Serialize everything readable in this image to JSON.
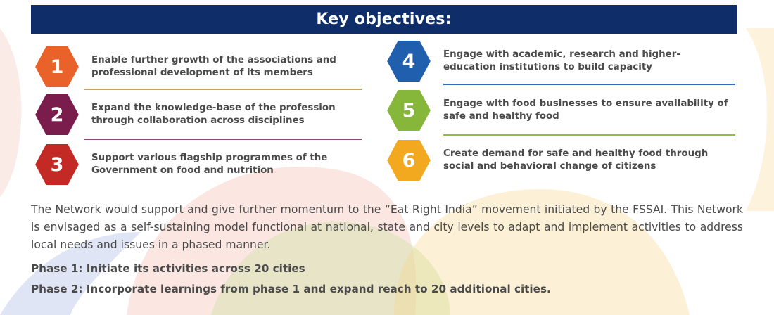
{
  "header": {
    "title": "Key objectives:"
  },
  "objectives": [
    {
      "number": "1",
      "text": "Enable further growth of the associations and professional development of its members",
      "color": "#e8622a"
    },
    {
      "number": "2",
      "text": "Expand the knowledge-base of the profession through collaboration across disciplines",
      "color": "#7a1d4d"
    },
    {
      "number": "3",
      "text": "Support various flagship programmes of the Government on food and nutrition",
      "color": "#c42a25"
    },
    {
      "number": "4",
      "text": "Engage with academic, research and higher-education institutions to build capacity",
      "color": "#1f5fae"
    },
    {
      "number": "5",
      "text": "Engage with food businesses to ensure availability of safe and healthy food",
      "color": "#86b63a"
    },
    {
      "number": "6",
      "text": "Create demand for safe and healthy food through social and behavioral change of citizens",
      "color": "#f2a91f"
    }
  ],
  "body": {
    "paragraph": "The Network would support and give further momentum to the “Eat Right India” movement initiated by the FSSAI. This Network is envisaged as a self-sustaining model functional at national, state and city levels to adapt and implement activities to address local needs and issues in a phased manner.",
    "phase1": "Phase 1: Initiate its activities across 20 cities",
    "phase2": "Phase 2: Incorporate learnings from phase 1 and expand reach to 20 additional cities."
  },
  "colors": {
    "banner": "#0f2d68"
  }
}
